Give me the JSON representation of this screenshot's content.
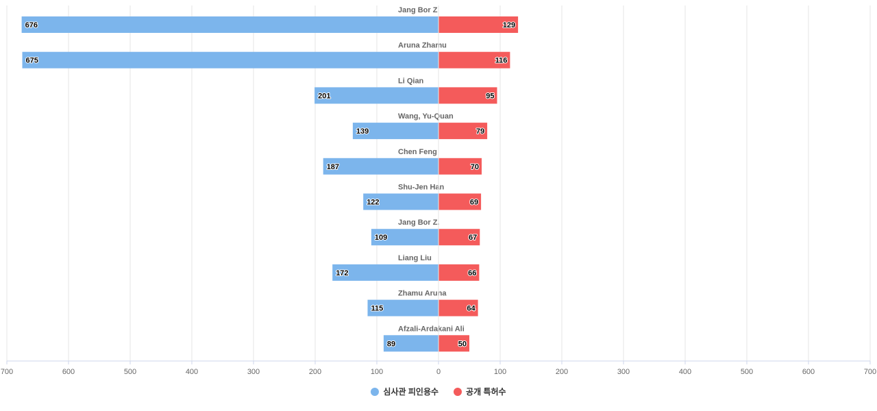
{
  "chart_data": {
    "type": "bar",
    "orientation": "horizontal",
    "layout": "diverging",
    "categories": [
      "Jang Bor Z",
      "Aruna Zhamu",
      "Li Qian",
      "Wang, Yu-Quan",
      "Chen Feng",
      "Shu-Jen Han",
      "Jang Bor Z.",
      "Liang Liu",
      "Zhamu Aruna",
      "Afzali-Ardakani Ali"
    ],
    "series": [
      {
        "name": "심사관 피인용수",
        "color": "#7cb5ec",
        "side": "left",
        "values": [
          676,
          675,
          201,
          139,
          187,
          122,
          109,
          172,
          115,
          89
        ]
      },
      {
        "name": "공개 특허수",
        "color": "#f45b5b",
        "side": "right",
        "values": [
          129,
          116,
          95,
          79,
          70,
          69,
          67,
          66,
          64,
          50
        ]
      }
    ],
    "x_ticks": [
      "700",
      "600",
      "500",
      "400",
      "300",
      "200",
      "100",
      "0",
      "100",
      "200",
      "300",
      "400",
      "500",
      "600",
      "700"
    ],
    "xlim": [
      -700,
      700
    ],
    "grid": true,
    "legend": "bottom-center"
  }
}
